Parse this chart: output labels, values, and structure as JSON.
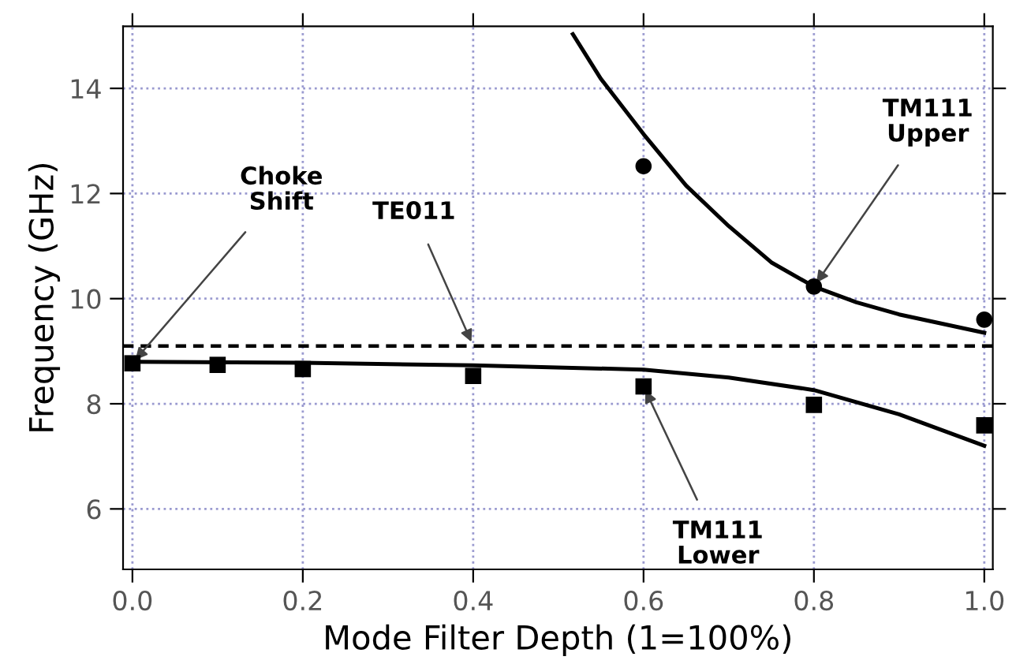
{
  "chart_data": {
    "type": "scatter",
    "xlabel": "Mode Filter Depth (1=100%)",
    "ylabel": "Frequency (GHz)",
    "xlim": [
      -0.011,
      1.01
    ],
    "ylim": [
      4.85,
      15.18
    ],
    "xticks": [
      {
        "value": 0,
        "label": "0.0"
      },
      0.2,
      0.4,
      0.6,
      0.8,
      {
        "value": 1,
        "label": "1.0"
      }
    ],
    "yticks": [
      6,
      8,
      10,
      12,
      14
    ],
    "grid": true,
    "series": [
      {
        "marker": "square",
        "color": "#000000",
        "x": [
          0,
          0.1,
          0.2,
          0.4,
          0.6,
          0.8,
          1.0
        ],
        "values": [
          8.77,
          8.74,
          8.66,
          8.53,
          8.33,
          7.98,
          7.59
        ]
      },
      {
        "marker": "circle",
        "color": "#000000",
        "x": [
          0.6,
          0.8,
          1.0
        ],
        "values": [
          12.52,
          10.23,
          9.6
        ]
      },
      {
        "type": "line",
        "line_style": "solid",
        "color": "#000000",
        "x": [
          0,
          0.2,
          0.4,
          0.6,
          0.7,
          0.8,
          0.9,
          1.0
        ],
        "values": [
          8.8,
          8.78,
          8.73,
          8.65,
          8.5,
          8.26,
          7.8,
          7.2
        ]
      },
      {
        "type": "line",
        "line_style": "solid",
        "color": "#000000",
        "x": [
          0.517,
          0.55,
          0.6,
          0.65,
          0.7,
          0.75,
          0.8,
          0.85,
          0.9,
          1.0
        ],
        "values": [
          15.03,
          14.18,
          13.13,
          12.15,
          11.38,
          10.69,
          10.23,
          9.93,
          9.7,
          9.35
        ]
      }
    ],
    "ref_lines": [
      {
        "axis": "y",
        "value": 9.1,
        "line_style": "dashed",
        "color": "#000000"
      }
    ],
    "annotations": [
      {
        "text": "Choke\nShift",
        "x": 0,
        "y": 8.77
      },
      {
        "text": "TE011",
        "x": 0.4,
        "y": 9.1
      },
      {
        "text": "TM111\nUpper",
        "x": 0.8,
        "y": 10.23
      },
      {
        "text": "TM111\nLower",
        "x": 0.6,
        "y": 8.33
      }
    ]
  }
}
